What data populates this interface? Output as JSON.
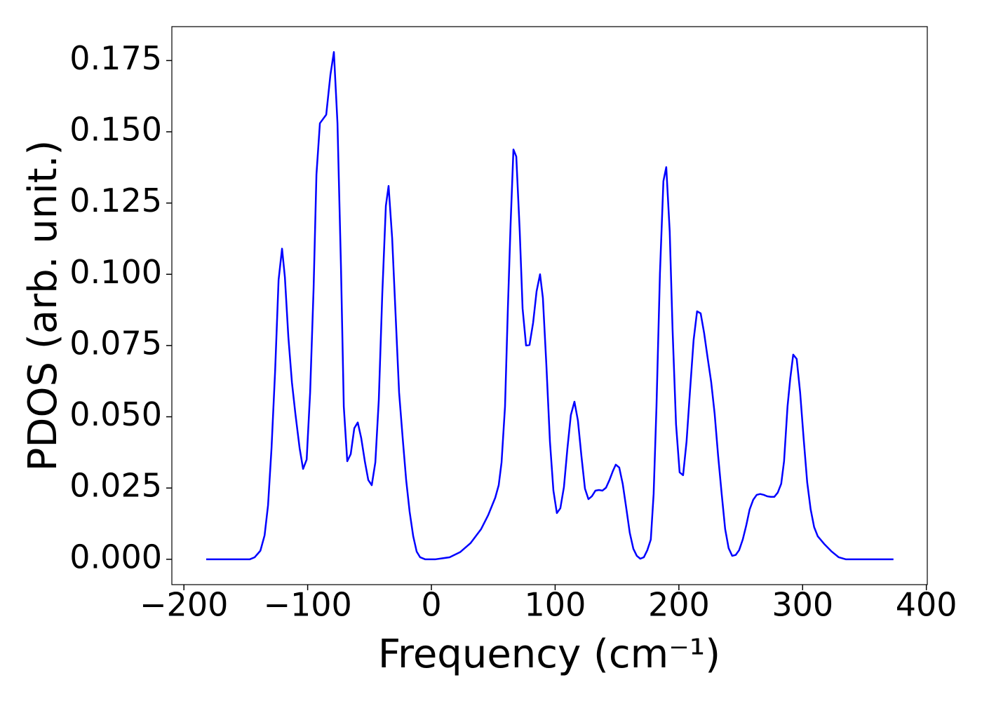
{
  "chart_data": {
    "type": "line",
    "x_label": "Frequency (cm⁻¹)",
    "y_label": "PDOS (arb. unit.)",
    "color": "#0000ff",
    "x": [
      -182,
      -146.7,
      -142.8,
      -138.2,
      -134.8,
      -132,
      -129.2,
      -126.3,
      -123.5,
      -120.7,
      -118.4,
      -115.6,
      -112.7,
      -109.9,
      -106.5,
      -103.7,
      -100.8,
      -98,
      -95.2,
      -92.9,
      -90.1,
      -85,
      -81.6,
      -78.8,
      -75.9,
      -73.1,
      -70.8,
      -68,
      -65.2,
      -62.3,
      -59.5,
      -56.7,
      -53.8,
      -51,
      -48.2,
      -45.3,
      -42.5,
      -39.7,
      -36.8,
      -34.6,
      -31.7,
      -28.9,
      -26.1,
      -23.2,
      -20.4,
      -17.6,
      -14.7,
      -11.9,
      -9.1,
      -5.1,
      3.4,
      14.7,
      23.2,
      31.7,
      40.2,
      45.9,
      51.6,
      54.4,
      56.7,
      59.5,
      61.8,
      64,
      66.3,
      68.6,
      71.4,
      73.7,
      76.5,
      79.3,
      82.2,
      85,
      87.8,
      90.1,
      92.9,
      95.8,
      98.6,
      101.4,
      104.2,
      107.1,
      109.9,
      112.7,
      115.6,
      118.4,
      121.2,
      124.1,
      126.9,
      129.7,
      132.6,
      135.4,
      138.2,
      141.1,
      143.9,
      146.7,
      149,
      151.8,
      154.6,
      157.5,
      160.3,
      163.2,
      166,
      168.8,
      171.7,
      174.5,
      177.3,
      179.6,
      181.9,
      184.7,
      187.5,
      189.8,
      192.6,
      194.9,
      197.7,
      200.6,
      203.4,
      206.2,
      209.1,
      211.9,
      214.7,
      217.6,
      220.4,
      223.2,
      226.1,
      228.9,
      231.7,
      234.6,
      237.4,
      240.2,
      243.1,
      245.9,
      248.7,
      251.6,
      254.4,
      257.2,
      260.1,
      262.9,
      265.7,
      268.6,
      271.4,
      274.2,
      277.1,
      279.9,
      282.7,
      285,
      287.8,
      290,
      292.4,
      295.2,
      298,
      300.8,
      303.7,
      306.5,
      309.3,
      312.2,
      317.8,
      323.5,
      329.2,
      334.8,
      373.4
    ],
    "values": [
      0,
      0,
      0.0007,
      0.003,
      0.0084,
      0.019,
      0.039,
      0.066,
      0.098,
      0.109,
      0.099,
      0.078,
      0.062,
      0.051,
      0.039,
      0.0317,
      0.035,
      0.0585,
      0.095,
      0.135,
      0.153,
      0.156,
      0.17,
      0.178,
      0.153,
      0.103,
      0.0536,
      0.0344,
      0.0369,
      0.046,
      0.048,
      0.0425,
      0.0344,
      0.0278,
      0.026,
      0.034,
      0.056,
      0.093,
      0.124,
      0.131,
      0.1126,
      0.0855,
      0.0585,
      0.0425,
      0.0278,
      0.0167,
      0.0081,
      0.0027,
      0.0007,
      0,
      0,
      0.0007,
      0.0025,
      0.0057,
      0.0106,
      0.0155,
      0.0216,
      0.026,
      0.034,
      0.0536,
      0.088,
      0.1175,
      0.1438,
      0.1413,
      0.115,
      0.088,
      0.075,
      0.0752,
      0.083,
      0.094,
      0.1,
      0.0917,
      0.0683,
      0.0413,
      0.0241,
      0.0162,
      0.0179,
      0.0253,
      0.0388,
      0.0506,
      0.0553,
      0.0487,
      0.0364,
      0.0248,
      0.0211,
      0.0221,
      0.0241,
      0.0243,
      0.0241,
      0.0251,
      0.0278,
      0.031,
      0.0332,
      0.0322,
      0.0265,
      0.0179,
      0.0093,
      0.0037,
      0.0012,
      0.0002,
      0.0007,
      0.0032,
      0.0069,
      0.0229,
      0.0536,
      0.1003,
      0.1327,
      0.1376,
      0.115,
      0.0806,
      0.0474,
      0.0305,
      0.0295,
      0.0413,
      0.0597,
      0.0769,
      0.087,
      0.0863,
      0.0794,
      0.0708,
      0.0622,
      0.0511,
      0.0364,
      0.0229,
      0.0106,
      0.0039,
      0.0012,
      0.0015,
      0.0032,
      0.0069,
      0.0118,
      0.0175,
      0.0209,
      0.0226,
      0.0229,
      0.0226,
      0.0221,
      0.0219,
      0.0219,
      0.0234,
      0.0265,
      0.0344,
      0.0536,
      0.0634,
      0.0718,
      0.0703,
      0.0585,
      0.0425,
      0.027,
      0.0175,
      0.0113,
      0.0081,
      0.0052,
      0.0027,
      0.0007,
      0,
      0
    ],
    "xlim": [
      -209.75,
      400.75
    ],
    "ylim": [
      -0.0089,
      0.1869
    ],
    "xticks": [
      {
        "value": -200,
        "label": "−200"
      },
      {
        "value": -100,
        "label": "−100"
      },
      0,
      100,
      200,
      300,
      400
    ],
    "yticks": [
      {
        "value": 0,
        "label": "0.000"
      },
      {
        "value": 0.025,
        "label": "0.025"
      },
      {
        "value": 0.05,
        "label": "0.050"
      },
      {
        "value": 0.075,
        "label": "0.075"
      },
      {
        "value": 0.1,
        "label": "0.100"
      },
      {
        "value": 0.125,
        "label": "0.125"
      },
      {
        "value": 0.15,
        "label": "0.150"
      },
      {
        "value": 0.175,
        "label": "0.175"
      }
    ],
    "grid": false
  }
}
